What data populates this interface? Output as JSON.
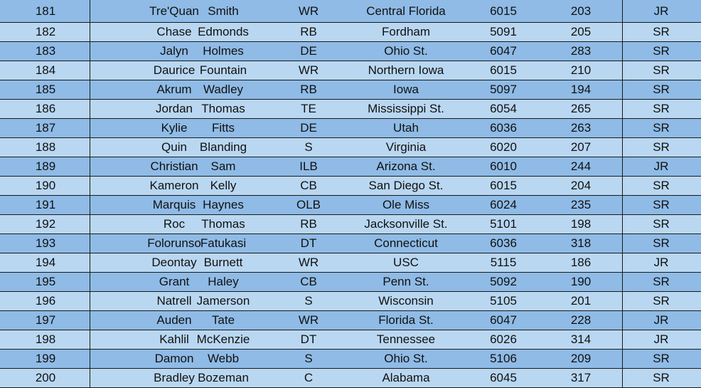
{
  "colors": {
    "row_dark": "#8fbbe6",
    "row_light": "#b9d7f1",
    "grid": "#1a1a1a"
  },
  "rows": [
    [
      "181",
      "Tre'Quan",
      "Smith",
      "WR",
      "Central Florida",
      "6015",
      "203",
      "JR"
    ],
    [
      "182",
      "Chase",
      "Edmonds",
      "RB",
      "Fordham",
      "5091",
      "205",
      "SR"
    ],
    [
      "183",
      "Jalyn",
      "Holmes",
      "DE",
      "Ohio St.",
      "6047",
      "283",
      "SR"
    ],
    [
      "184",
      "Daurice",
      "Fountain",
      "WR",
      "Northern Iowa",
      "6015",
      "210",
      "SR"
    ],
    [
      "185",
      "Akrum",
      "Wadley",
      "RB",
      "Iowa",
      "5097",
      "194",
      "SR"
    ],
    [
      "186",
      "Jordan",
      "Thomas",
      "TE",
      "Mississippi St.",
      "6054",
      "265",
      "SR"
    ],
    [
      "187",
      "Kylie",
      "Fitts",
      "DE",
      "Utah",
      "6036",
      "263",
      "SR"
    ],
    [
      "188",
      "Quin",
      "Blanding",
      "S",
      "Virginia",
      "6020",
      "207",
      "SR"
    ],
    [
      "189",
      "Christian",
      "Sam",
      "ILB",
      "Arizona St.",
      "6010",
      "244",
      "JR"
    ],
    [
      "190",
      "Kameron",
      "Kelly",
      "CB",
      "San Diego St.",
      "6015",
      "204",
      "SR"
    ],
    [
      "191",
      "Marquis",
      "Haynes",
      "OLB",
      "Ole Miss",
      "6024",
      "235",
      "SR"
    ],
    [
      "192",
      "Roc",
      "Thomas",
      "RB",
      "Jacksonville St.",
      "5101",
      "198",
      "SR"
    ],
    [
      "193",
      "Folorunso",
      "Fatukasi",
      "DT",
      "Connecticut",
      "6036",
      "318",
      "SR"
    ],
    [
      "194",
      "Deontay",
      "Burnett",
      "WR",
      "USC",
      "5115",
      "186",
      "JR"
    ],
    [
      "195",
      "Grant",
      "Haley",
      "CB",
      "Penn St.",
      "5092",
      "190",
      "SR"
    ],
    [
      "196",
      "Natrell",
      "Jamerson",
      "S",
      "Wisconsin",
      "5105",
      "201",
      "SR"
    ],
    [
      "197",
      "Auden",
      "Tate",
      "WR",
      "Florida St.",
      "6047",
      "228",
      "JR"
    ],
    [
      "198",
      "Kahlil",
      "McKenzie",
      "DT",
      "Tennessee",
      "6026",
      "314",
      "JR"
    ],
    [
      "199",
      "Damon",
      "Webb",
      "S",
      "Ohio St.",
      "5106",
      "209",
      "SR"
    ],
    [
      "200",
      "Bradley",
      "Bozeman",
      "C",
      "Alabama",
      "6045",
      "317",
      "SR"
    ]
  ]
}
